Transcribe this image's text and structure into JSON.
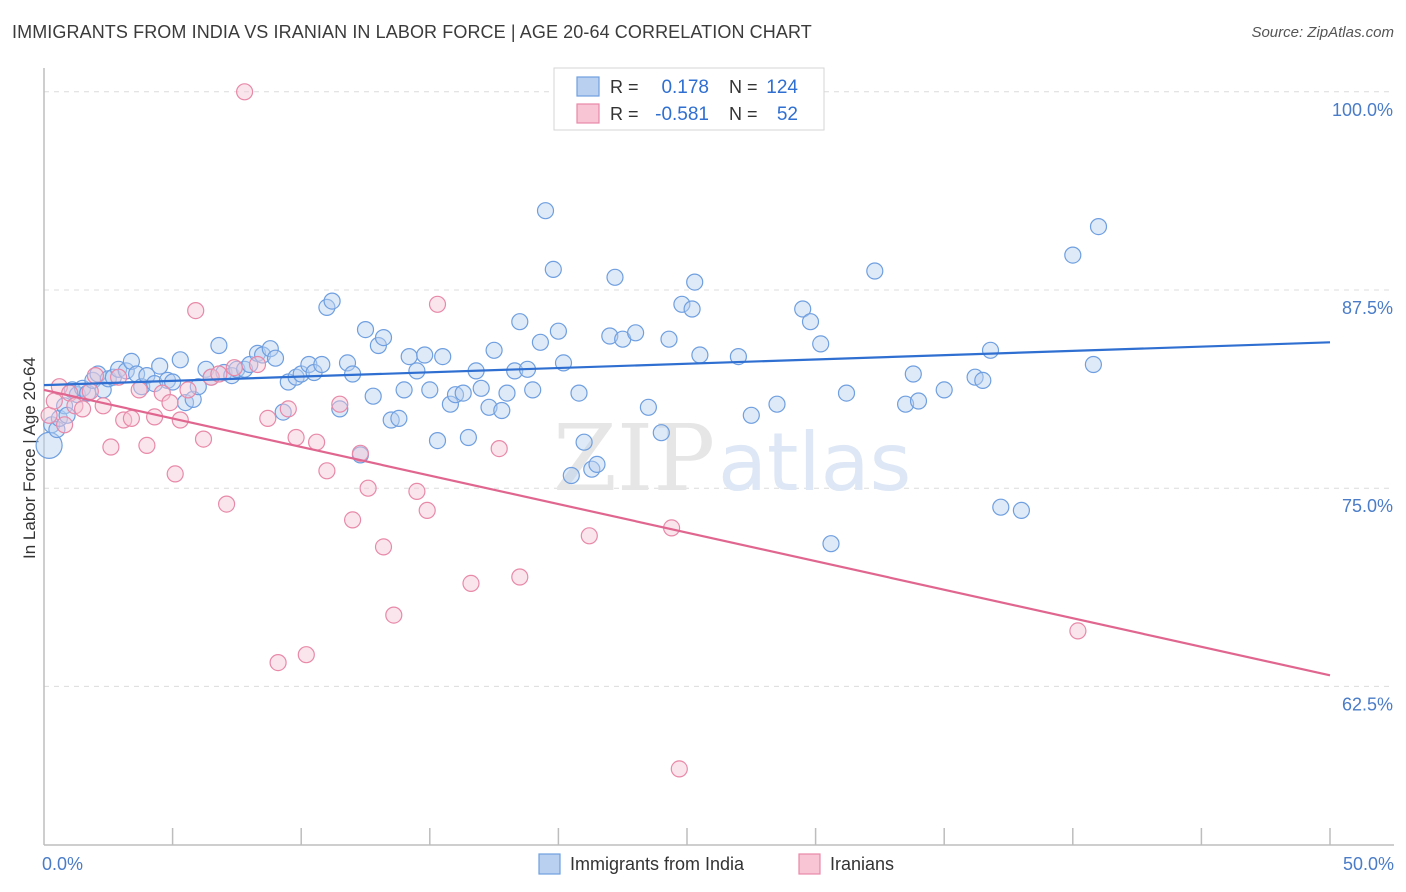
{
  "title": "IMMIGRANTS FROM INDIA VS IRANIAN IN LABOR FORCE | AGE 20-64 CORRELATION CHART",
  "source": "Source: ZipAtlas.com",
  "watermark": {
    "zip": "ZIP",
    "atlas": "atlas"
  },
  "chart_data": {
    "type": "scatter",
    "ylabel": "In Labor Force | Age 20-64",
    "xlim": [
      0,
      50
    ],
    "ylim": [
      52.5,
      101.5
    ],
    "x_tick_labels": [
      {
        "value": 0,
        "label": "0.0%"
      },
      {
        "value": 50,
        "label": "50.0%"
      }
    ],
    "x_minor_ticks": [
      5,
      10,
      15,
      20,
      25,
      30,
      35,
      40,
      45,
      50
    ],
    "y_ticks": [
      {
        "value": 100,
        "label": "100.0%"
      },
      {
        "value": 87.5,
        "label": "87.5%"
      },
      {
        "value": 75,
        "label": "75.0%"
      },
      {
        "value": 62.5,
        "label": "62.5%"
      }
    ],
    "grid": "horizontal dashed",
    "legend": {
      "placement": "top-center",
      "entries": [
        {
          "r_label": "R =",
          "r_value": "0.178",
          "n_label": "N =",
          "n_value": "124"
        },
        {
          "r_label": "R =",
          "r_value": "-0.581",
          "n_label": "N =",
          "n_value": "52"
        }
      ]
    },
    "series": [
      {
        "name": "Immigrants from India",
        "color": "#6f9fe0",
        "fill": "#b9d0f0",
        "line_color": "#2f6fd1",
        "trend": {
          "x": [
            0,
            50
          ],
          "y": [
            81.5,
            84.2
          ]
        },
        "points": [
          [
            0.2,
            77.7
          ],
          [
            0.3,
            79.0
          ],
          [
            0.5,
            78.7
          ],
          [
            0.6,
            79.4
          ],
          [
            0.8,
            80.2
          ],
          [
            0.9,
            79.6
          ],
          [
            1.1,
            81.2
          ],
          [
            1.3,
            80.9
          ],
          [
            1.5,
            81.3
          ],
          [
            1.7,
            81.0
          ],
          [
            1.9,
            81.8
          ],
          [
            2.1,
            82.2
          ],
          [
            2.3,
            81.2
          ],
          [
            2.5,
            81.9
          ],
          [
            2.7,
            82.0
          ],
          [
            2.9,
            82.5
          ],
          [
            3.2,
            82.4
          ],
          [
            3.4,
            83.0
          ],
          [
            3.6,
            82.2
          ],
          [
            3.8,
            81.4
          ],
          [
            4.0,
            82.1
          ],
          [
            4.3,
            81.6
          ],
          [
            4.5,
            82.7
          ],
          [
            4.8,
            81.8
          ],
          [
            5.0,
            81.7
          ],
          [
            5.3,
            83.1
          ],
          [
            5.5,
            80.4
          ],
          [
            5.8,
            80.6
          ],
          [
            6.0,
            81.4
          ],
          [
            6.3,
            82.5
          ],
          [
            6.5,
            82.0
          ],
          [
            6.8,
            84.0
          ],
          [
            7.0,
            82.3
          ],
          [
            7.3,
            82.1
          ],
          [
            7.5,
            82.5
          ],
          [
            7.8,
            82.5
          ],
          [
            8.0,
            82.8
          ],
          [
            8.3,
            83.5
          ],
          [
            8.5,
            83.4
          ],
          [
            8.8,
            83.8
          ],
          [
            9.0,
            83.2
          ],
          [
            9.3,
            79.8
          ],
          [
            9.5,
            81.7
          ],
          [
            9.8,
            82.0
          ],
          [
            10.0,
            82.2
          ],
          [
            10.3,
            82.8
          ],
          [
            10.5,
            82.3
          ],
          [
            10.8,
            82.8
          ],
          [
            11.0,
            86.4
          ],
          [
            11.2,
            86.8
          ],
          [
            11.5,
            80.0
          ],
          [
            11.8,
            82.9
          ],
          [
            12.0,
            82.2
          ],
          [
            12.3,
            77.1
          ],
          [
            12.5,
            85.0
          ],
          [
            12.8,
            80.8
          ],
          [
            13.0,
            84.0
          ],
          [
            13.2,
            84.5
          ],
          [
            13.5,
            79.3
          ],
          [
            13.8,
            79.4
          ],
          [
            14.0,
            81.2
          ],
          [
            14.2,
            83.3
          ],
          [
            14.5,
            82.4
          ],
          [
            14.8,
            83.4
          ],
          [
            15.0,
            81.2
          ],
          [
            15.3,
            78.0
          ],
          [
            15.5,
            83.3
          ],
          [
            15.8,
            80.3
          ],
          [
            16.0,
            80.9
          ],
          [
            16.3,
            81.0
          ],
          [
            16.5,
            78.2
          ],
          [
            16.8,
            82.4
          ],
          [
            17.0,
            81.3
          ],
          [
            17.3,
            80.1
          ],
          [
            17.5,
            83.7
          ],
          [
            17.8,
            79.9
          ],
          [
            18.0,
            81.0
          ],
          [
            18.3,
            82.4
          ],
          [
            18.5,
            85.5
          ],
          [
            18.8,
            82.5
          ],
          [
            19.0,
            81.2
          ],
          [
            19.3,
            84.2
          ],
          [
            19.5,
            92.5
          ],
          [
            19.8,
            88.8
          ],
          [
            20.0,
            84.9
          ],
          [
            20.2,
            82.9
          ],
          [
            20.5,
            75.8
          ],
          [
            20.8,
            81.0
          ],
          [
            21.0,
            77.9
          ],
          [
            21.3,
            76.2
          ],
          [
            21.5,
            76.5
          ],
          [
            22.0,
            84.6
          ],
          [
            22.2,
            88.3
          ],
          [
            22.5,
            84.4
          ],
          [
            23.0,
            84.8
          ],
          [
            23.5,
            80.1
          ],
          [
            24.0,
            78.5
          ],
          [
            24.3,
            84.4
          ],
          [
            24.8,
            86.6
          ],
          [
            25.2,
            86.3
          ],
          [
            25.3,
            88.0
          ],
          [
            25.5,
            83.4
          ],
          [
            27.0,
            83.3
          ],
          [
            27.5,
            79.6
          ],
          [
            28.5,
            80.3
          ],
          [
            29.5,
            86.3
          ],
          [
            29.8,
            85.5
          ],
          [
            30.2,
            84.1
          ],
          [
            30.6,
            71.5
          ],
          [
            31.2,
            81.0
          ],
          [
            32.3,
            88.7
          ],
          [
            33.5,
            80.3
          ],
          [
            33.8,
            82.2
          ],
          [
            34.0,
            80.5
          ],
          [
            35.0,
            81.2
          ],
          [
            36.2,
            82.0
          ],
          [
            36.5,
            81.8
          ],
          [
            36.8,
            83.7
          ],
          [
            37.2,
            73.8
          ],
          [
            38.0,
            73.6
          ],
          [
            40.0,
            89.7
          ],
          [
            40.8,
            82.8
          ],
          [
            41.0,
            91.5
          ]
        ]
      },
      {
        "name": "Iranians",
        "color": "#e889a8",
        "fill": "#f7c5d4",
        "line_color": "#e06690",
        "trend": {
          "x": [
            0,
            50
          ],
          "y": [
            81.2,
            63.2
          ]
        },
        "points": [
          [
            0.2,
            79.6
          ],
          [
            0.4,
            80.5
          ],
          [
            0.6,
            81.4
          ],
          [
            0.8,
            79.0
          ],
          [
            1.0,
            81.0
          ],
          [
            1.2,
            80.2
          ],
          [
            1.5,
            80.0
          ],
          [
            1.8,
            81.1
          ],
          [
            2.0,
            82.1
          ],
          [
            2.3,
            80.2
          ],
          [
            2.6,
            77.6
          ],
          [
            2.9,
            82.0
          ],
          [
            3.1,
            79.3
          ],
          [
            3.4,
            79.4
          ],
          [
            3.7,
            81.2
          ],
          [
            4.0,
            77.7
          ],
          [
            4.3,
            79.5
          ],
          [
            4.6,
            81.0
          ],
          [
            4.9,
            80.4
          ],
          [
            5.1,
            75.9
          ],
          [
            5.3,
            79.3
          ],
          [
            5.6,
            81.2
          ],
          [
            5.9,
            86.2
          ],
          [
            6.2,
            78.1
          ],
          [
            6.5,
            82.0
          ],
          [
            6.8,
            82.2
          ],
          [
            7.1,
            74.0
          ],
          [
            7.4,
            82.6
          ],
          [
            7.8,
            100.0
          ],
          [
            8.3,
            82.8
          ],
          [
            8.7,
            79.4
          ],
          [
            9.1,
            64.0
          ],
          [
            9.5,
            80.0
          ],
          [
            9.8,
            78.2
          ],
          [
            10.2,
            64.5
          ],
          [
            10.6,
            77.9
          ],
          [
            11.0,
            76.1
          ],
          [
            11.5,
            80.3
          ],
          [
            12.0,
            73.0
          ],
          [
            12.3,
            77.2
          ],
          [
            12.6,
            75.0
          ],
          [
            13.2,
            71.3
          ],
          [
            13.6,
            67.0
          ],
          [
            14.5,
            74.8
          ],
          [
            14.9,
            73.6
          ],
          [
            15.3,
            86.6
          ],
          [
            16.6,
            69.0
          ],
          [
            17.7,
            77.5
          ],
          [
            18.5,
            69.4
          ],
          [
            21.2,
            72.0
          ],
          [
            24.4,
            72.5
          ],
          [
            24.7,
            57.3
          ],
          [
            40.2,
            66.0
          ]
        ]
      }
    ]
  }
}
